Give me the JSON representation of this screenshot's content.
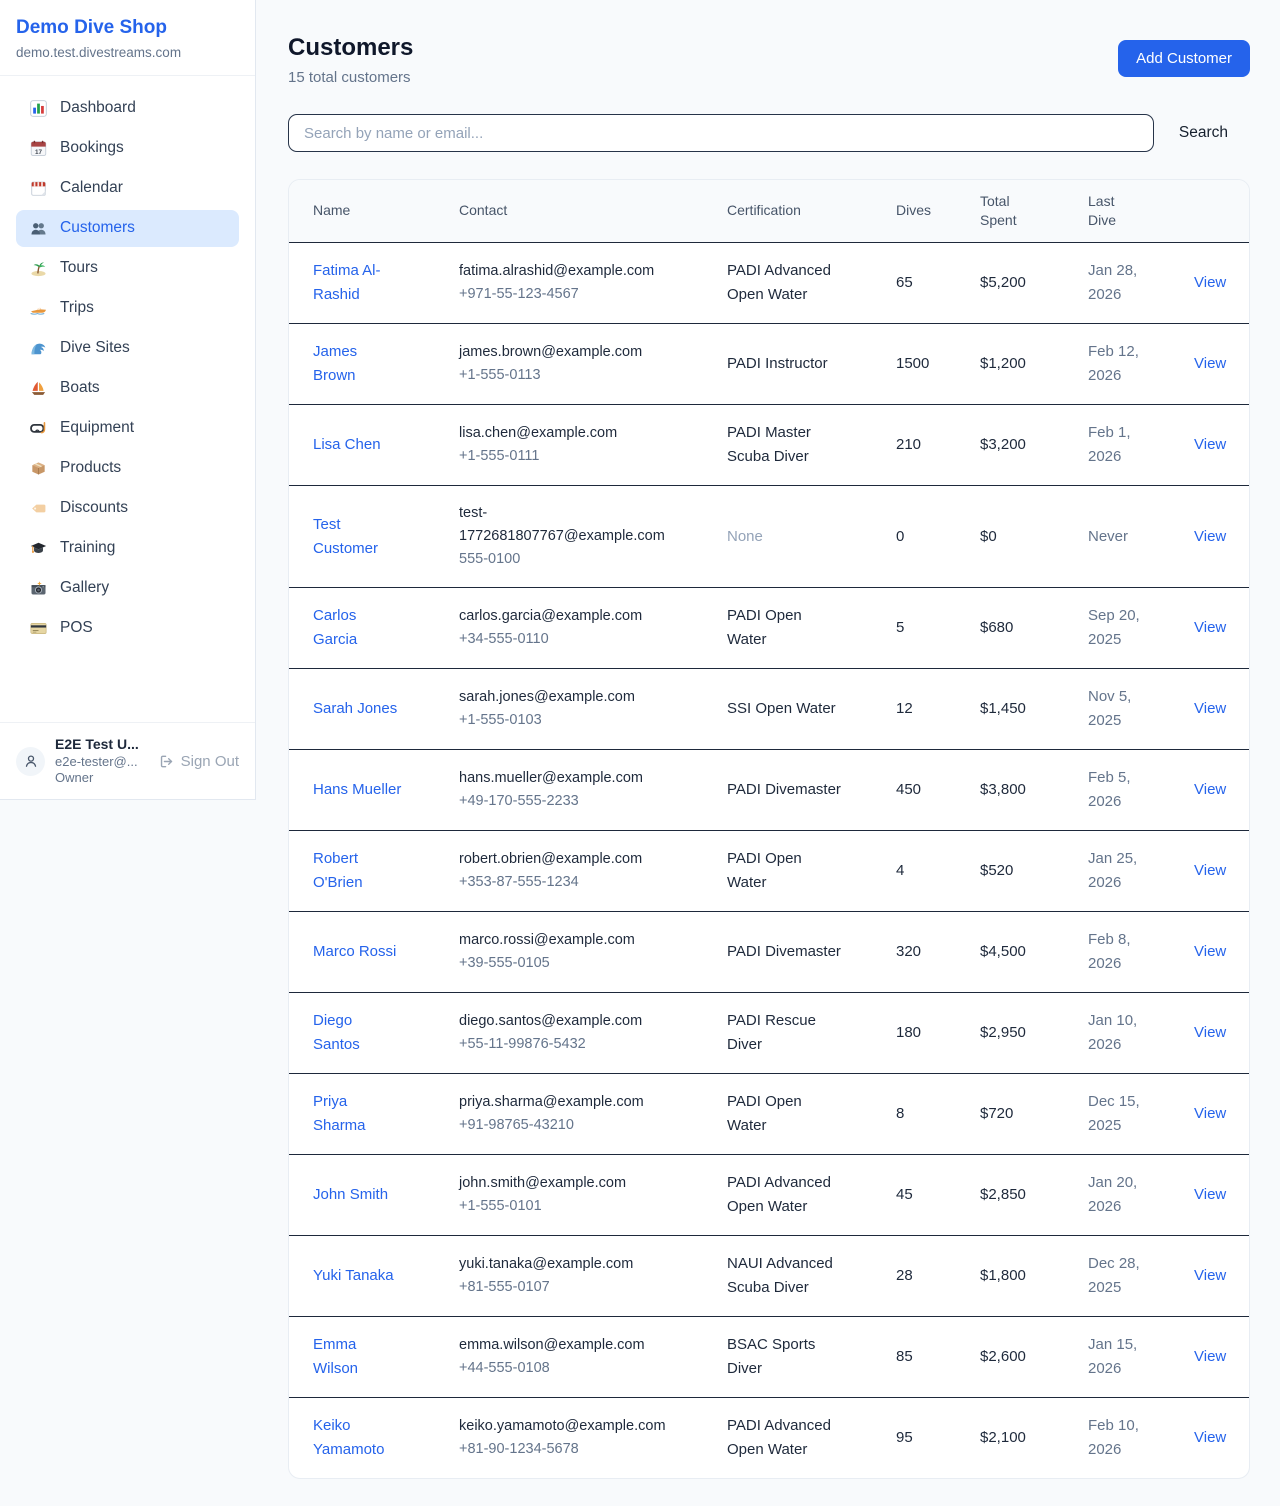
{
  "colors": {
    "accent": "#2563eb",
    "active_item_bg": "#dbeafe",
    "muted_text": "#64748b",
    "dark_border": "#1e293b",
    "page_bg": "#f8fafc"
  },
  "sidebar": {
    "brand": "Demo Dive Shop",
    "domain": "demo.test.divestreams.com",
    "items": [
      {
        "label": "Dashboard",
        "icon": "dashboard-icon",
        "active": false
      },
      {
        "label": "Bookings",
        "icon": "bookings-icon",
        "active": false
      },
      {
        "label": "Calendar",
        "icon": "calendar-icon",
        "active": false
      },
      {
        "label": "Customers",
        "icon": "customers-icon",
        "active": true
      },
      {
        "label": "Tours",
        "icon": "tours-icon",
        "active": false
      },
      {
        "label": "Trips",
        "icon": "trips-icon",
        "active": false
      },
      {
        "label": "Dive Sites",
        "icon": "dive-sites-icon",
        "active": false
      },
      {
        "label": "Boats",
        "icon": "boats-icon",
        "active": false
      },
      {
        "label": "Equipment",
        "icon": "equipment-icon",
        "active": false
      },
      {
        "label": "Products",
        "icon": "products-icon",
        "active": false
      },
      {
        "label": "Discounts",
        "icon": "discounts-icon",
        "active": false
      },
      {
        "label": "Training",
        "icon": "training-icon",
        "active": false
      },
      {
        "label": "Gallery",
        "icon": "gallery-icon",
        "active": false
      },
      {
        "label": "POS",
        "icon": "pos-icon",
        "active": false
      }
    ],
    "user": {
      "name": "E2E Test U...",
      "email": "e2e-tester@...",
      "role": "Owner",
      "sign_out_label": "Sign Out"
    }
  },
  "header": {
    "title": "Customers",
    "subtitle": "15 total customers",
    "add_button_label": "Add Customer"
  },
  "search": {
    "placeholder": "Search by name or email...",
    "value": "",
    "button_label": "Search"
  },
  "table": {
    "columns": [
      "Name",
      "Contact",
      "Certification",
      "Dives",
      "Total Spent",
      "Last Dive"
    ],
    "rows": [
      {
        "name": "Fatima Al-Rashid",
        "email": "fatima.alrashid@example.com",
        "phone": "+971-55-123-4567",
        "certification": "PADI Advanced Open Water",
        "dives": "65",
        "total_spent": "$5,200",
        "last_dive": "Jan 28, 2026",
        "action": "View"
      },
      {
        "name": "James Brown",
        "email": "james.brown@example.com",
        "phone": "+1-555-0113",
        "certification": "PADI Instructor",
        "dives": "1500",
        "total_spent": "$1,200",
        "last_dive": "Feb 12, 2026",
        "action": "View"
      },
      {
        "name": "Lisa Chen",
        "email": "lisa.chen@example.com",
        "phone": "+1-555-0111",
        "certification": "PADI Master Scuba Diver",
        "dives": "210",
        "total_spent": "$3,200",
        "last_dive": "Feb 1, 2026",
        "action": "View"
      },
      {
        "name": "Test Customer",
        "email": "test-1772681807767@example.com",
        "phone": "555-0100",
        "certification": "None",
        "dives": "0",
        "total_spent": "$0",
        "last_dive": "Never",
        "action": "View"
      },
      {
        "name": "Carlos Garcia",
        "email": "carlos.garcia@example.com",
        "phone": "+34-555-0110",
        "certification": "PADI Open Water",
        "dives": "5",
        "total_spent": "$680",
        "last_dive": "Sep 20, 2025",
        "action": "View"
      },
      {
        "name": "Sarah Jones",
        "email": "sarah.jones@example.com",
        "phone": "+1-555-0103",
        "certification": "SSI Open Water",
        "dives": "12",
        "total_spent": "$1,450",
        "last_dive": "Nov 5, 2025",
        "action": "View"
      },
      {
        "name": "Hans Mueller",
        "email": "hans.mueller@example.com",
        "phone": "+49-170-555-2233",
        "certification": "PADI Divemaster",
        "dives": "450",
        "total_spent": "$3,800",
        "last_dive": "Feb 5, 2026",
        "action": "View"
      },
      {
        "name": "Robert O'Brien",
        "email": "robert.obrien@example.com",
        "phone": "+353-87-555-1234",
        "certification": "PADI Open Water",
        "dives": "4",
        "total_spent": "$520",
        "last_dive": "Jan 25, 2026",
        "action": "View"
      },
      {
        "name": "Marco Rossi",
        "email": "marco.rossi@example.com",
        "phone": "+39-555-0105",
        "certification": "PADI Divemaster",
        "dives": "320",
        "total_spent": "$4,500",
        "last_dive": "Feb 8, 2026",
        "action": "View"
      },
      {
        "name": "Diego Santos",
        "email": "diego.santos@example.com",
        "phone": "+55-11-99876-5432",
        "certification": "PADI Rescue Diver",
        "dives": "180",
        "total_spent": "$2,950",
        "last_dive": "Jan 10, 2026",
        "action": "View"
      },
      {
        "name": "Priya Sharma",
        "email": "priya.sharma@example.com",
        "phone": "+91-98765-43210",
        "certification": "PADI Open Water",
        "dives": "8",
        "total_spent": "$720",
        "last_dive": "Dec 15, 2025",
        "action": "View"
      },
      {
        "name": "John Smith",
        "email": "john.smith@example.com",
        "phone": "+1-555-0101",
        "certification": "PADI Advanced Open Water",
        "dives": "45",
        "total_spent": "$2,850",
        "last_dive": "Jan 20, 2026",
        "action": "View"
      },
      {
        "name": "Yuki Tanaka",
        "email": "yuki.tanaka@example.com",
        "phone": "+81-555-0107",
        "certification": "NAUI Advanced Scuba Diver",
        "dives": "28",
        "total_spent": "$1,800",
        "last_dive": "Dec 28, 2025",
        "action": "View"
      },
      {
        "name": "Emma Wilson",
        "email": "emma.wilson@example.com",
        "phone": "+44-555-0108",
        "certification": "BSAC Sports Diver",
        "dives": "85",
        "total_spent": "$2,600",
        "last_dive": "Jan 15, 2026",
        "action": "View"
      },
      {
        "name": "Keiko Yamamoto",
        "email": "keiko.yamamoto@example.com",
        "phone": "+81-90-1234-5678",
        "certification": "PADI Advanced Open Water",
        "dives": "95",
        "total_spent": "$2,100",
        "last_dive": "Feb 10, 2026",
        "action": "View"
      }
    ]
  }
}
